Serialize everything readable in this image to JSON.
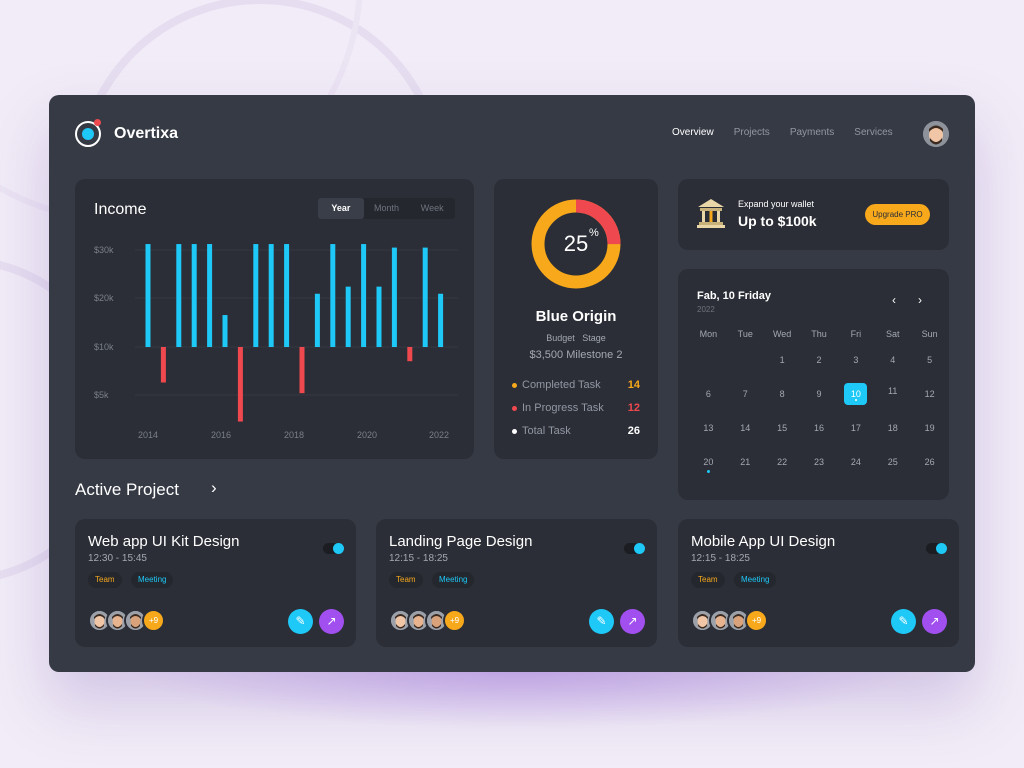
{
  "header": {
    "brand": "Overtixa",
    "nav": [
      {
        "label": "Overview",
        "active": true
      },
      {
        "label": "Projects",
        "active": false
      },
      {
        "label": "Payments",
        "active": false
      },
      {
        "label": "Services",
        "active": false
      }
    ]
  },
  "income": {
    "title": "Income",
    "range_tabs": [
      {
        "label": "Year",
        "active": true
      },
      {
        "label": "Month",
        "active": false
      },
      {
        "label": "Week",
        "active": false
      }
    ]
  },
  "chart_data": {
    "type": "bar",
    "title": "Income",
    "y_ticks": [
      "$30k",
      "$20k",
      "$10k",
      "$5k"
    ],
    "x_ticks": [
      "2014",
      "2016",
      "2018",
      "2020",
      "2022"
    ],
    "baseline_label": "$10k",
    "series": [
      {
        "color": "#1ec8f7",
        "values": [
          14.5,
          0,
          14.5,
          14.5,
          14.5,
          4.5,
          0,
          14.5,
          14.5,
          14.5,
          0,
          7.5,
          14.5,
          8.5,
          14.5,
          8.5,
          14,
          0,
          14,
          7.5
        ]
      },
      {
        "color": "#f0484f",
        "values": [
          0,
          -5,
          0,
          0,
          0,
          0,
          -10.5,
          0,
          0,
          0,
          -6.5,
          0,
          0,
          0,
          0,
          0,
          0,
          -2,
          0,
          0
        ]
      }
    ]
  },
  "project_progress": {
    "percent": "25",
    "percent_sign": "%",
    "value": 25,
    "name": "Blue Origin",
    "sub": "Budget   Stage",
    "detail": "$3,500 Milestone 2",
    "stats": [
      {
        "label": "Completed Task",
        "value": "14",
        "color": "#f7a81b"
      },
      {
        "label": "In Progress Task",
        "value": "12",
        "color": "#f0484f"
      },
      {
        "label": "Total Task",
        "value": "26",
        "color": "#ffffff"
      }
    ]
  },
  "wallet": {
    "small": "Expand your wallet",
    "big": "Up to $100k",
    "button": "Upgrade PRO",
    "icon": "bank-icon"
  },
  "calendar": {
    "title": "Fab, 10 Friday",
    "year": "2022",
    "weekdays": [
      "Mon",
      "Tue",
      "Wed",
      "Thu",
      "Fri",
      "Sat",
      "Sun"
    ],
    "weeks": [
      [
        "",
        "",
        "1",
        "2",
        "3",
        "4",
        "5"
      ],
      [
        "6",
        "7",
        "8",
        "9",
        "10",
        "11",
        "12"
      ],
      [
        "13",
        "14",
        "15",
        "16",
        "17",
        "18",
        "19"
      ],
      [
        "20",
        "21",
        "22",
        "23",
        "24",
        "25",
        "26"
      ]
    ],
    "selected": "10",
    "marked": "20"
  },
  "active_project": {
    "title": "Active Project",
    "cards": [
      {
        "title": "Web app UI Kit Design",
        "time": "12:30 - 15:45",
        "tags": [
          "Team",
          "Meeting"
        ],
        "more": "+9"
      },
      {
        "title": "Landing Page Design",
        "time": "12:15 - 18:25",
        "tags": [
          "Team",
          "Meeting"
        ],
        "more": "+9"
      },
      {
        "title": "Mobile App UI Design",
        "time": "12:15 - 18:25",
        "tags": [
          "Team",
          "Meeting"
        ],
        "more": "+9"
      }
    ]
  },
  "colors": {
    "accent": "#1ec8f7",
    "negative": "#f0484f",
    "warning": "#f7a81b",
    "purple": "#a24ff0"
  }
}
